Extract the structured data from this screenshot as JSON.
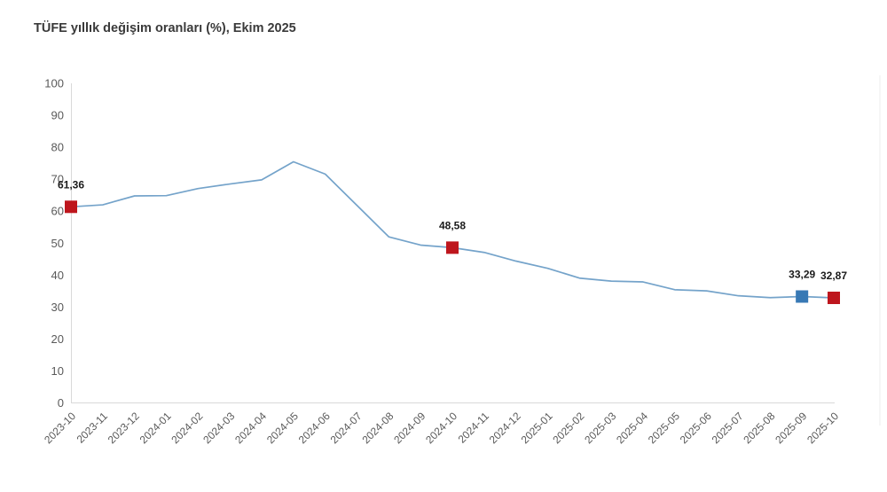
{
  "chart_data": {
    "type": "line",
    "title": "TÜFE yıllık değişim oranları (%), Ekim 2025",
    "xlabel": "",
    "ylabel": "",
    "ylim": [
      0,
      100
    ],
    "ytick_step": 10,
    "grid": false,
    "legend": "none",
    "categories": [
      "2023-10",
      "2023-11",
      "2023-12",
      "2024-01",
      "2024-02",
      "2024-03",
      "2024-04",
      "2024-05",
      "2024-06",
      "2024-07",
      "2024-08",
      "2024-09",
      "2024-10",
      "2024-11",
      "2024-12",
      "2025-01",
      "2025-02",
      "2025-03",
      "2025-04",
      "2025-05",
      "2025-06",
      "2025-07",
      "2025-08",
      "2025-09",
      "2025-10"
    ],
    "values": [
      61.36,
      61.98,
      64.77,
      64.86,
      67.07,
      68.5,
      69.8,
      75.45,
      71.6,
      61.78,
      51.97,
      49.38,
      48.58,
      47.09,
      44.38,
      42.12,
      39.05,
      38.1,
      37.86,
      35.41,
      35.05,
      33.52,
      32.95,
      33.29,
      32.87
    ],
    "annotations": [
      {
        "category": "2023-10",
        "index": 0,
        "label": "61,36",
        "marker": "red"
      },
      {
        "category": "2024-10",
        "index": 12,
        "label": "48,58",
        "marker": "red"
      },
      {
        "category": "2025-09",
        "index": 23,
        "label": "33,29",
        "marker": "blue"
      },
      {
        "category": "2025-10",
        "index": 24,
        "label": "32,87",
        "marker": "red"
      }
    ],
    "colors": {
      "line": "#74a3ca",
      "marker_red": "#be161d",
      "marker_blue": "#3879b5",
      "axis": "#d9d9d9",
      "tick_label": "#595959",
      "data_label": "#1b1b1b",
      "right_edge_line": "#ececec"
    }
  }
}
